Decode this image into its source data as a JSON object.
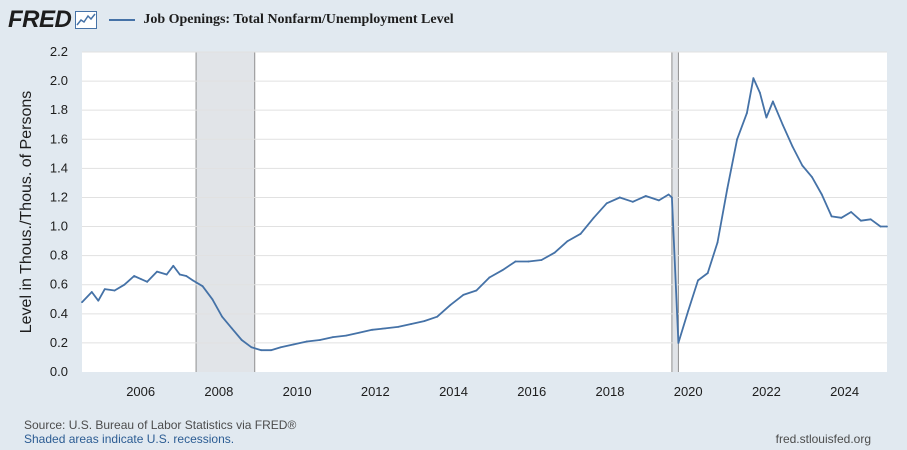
{
  "header": {
    "logo_text": "FRED",
    "logo_icon": "line-chart-icon",
    "series_title": "Job Openings: Total Nonfarm/Unemployment Level",
    "series_color": "#4572a7"
  },
  "footer": {
    "source": "Source: U.S. Bureau of Labor Statistics via FRED®",
    "recession_note": "Shaded areas indicate U.S. recessions.",
    "url": "fred.stlouisfed.org"
  },
  "chart_data": {
    "type": "line",
    "title": "Job Openings: Total Nonfarm/Unemployment Level",
    "ylabel": "Level in Thous./Thous. of Persons",
    "xlabel": "",
    "xlim": [
      "2005-01",
      "2025-08"
    ],
    "ylim": [
      0,
      2.2
    ],
    "y_ticks": [
      "0.0",
      "0.2",
      "0.4",
      "0.6",
      "0.8",
      "1.0",
      "1.2",
      "1.4",
      "1.6",
      "1.8",
      "2.0",
      "2.2"
    ],
    "x_ticks": [
      "2006",
      "2008",
      "2010",
      "2012",
      "2014",
      "2016",
      "2018",
      "2020",
      "2022",
      "2024"
    ],
    "grid": "horizontal",
    "recessions": [
      {
        "start": "2007-12",
        "end": "2009-06"
      },
      {
        "start": "2020-02",
        "end": "2020-04"
      }
    ],
    "series": [
      {
        "name": "Job Openings: Total Nonfarm/Unemployment Level",
        "color": "#4572a7",
        "points": [
          [
            "2005-01",
            0.48
          ],
          [
            "2005-04",
            0.55
          ],
          [
            "2005-06",
            0.49
          ],
          [
            "2005-08",
            0.57
          ],
          [
            "2005-11",
            0.56
          ],
          [
            "2006-02",
            0.6
          ],
          [
            "2006-05",
            0.66
          ],
          [
            "2006-07",
            0.64
          ],
          [
            "2006-09",
            0.62
          ],
          [
            "2006-12",
            0.69
          ],
          [
            "2007-03",
            0.67
          ],
          [
            "2007-05",
            0.73
          ],
          [
            "2007-07",
            0.67
          ],
          [
            "2007-09",
            0.66
          ],
          [
            "2007-11",
            0.63
          ],
          [
            "2008-02",
            0.59
          ],
          [
            "2008-05",
            0.5
          ],
          [
            "2008-08",
            0.38
          ],
          [
            "2008-11",
            0.3
          ],
          [
            "2009-02",
            0.22
          ],
          [
            "2009-05",
            0.17
          ],
          [
            "2009-08",
            0.15
          ],
          [
            "2009-11",
            0.15
          ],
          [
            "2010-02",
            0.17
          ],
          [
            "2010-06",
            0.19
          ],
          [
            "2010-10",
            0.21
          ],
          [
            "2011-02",
            0.22
          ],
          [
            "2011-06",
            0.24
          ],
          [
            "2011-10",
            0.25
          ],
          [
            "2012-02",
            0.27
          ],
          [
            "2012-06",
            0.29
          ],
          [
            "2012-10",
            0.3
          ],
          [
            "2013-02",
            0.31
          ],
          [
            "2013-06",
            0.33
          ],
          [
            "2013-10",
            0.35
          ],
          [
            "2014-02",
            0.38
          ],
          [
            "2014-06",
            0.46
          ],
          [
            "2014-10",
            0.53
          ],
          [
            "2015-02",
            0.56
          ],
          [
            "2015-06",
            0.65
          ],
          [
            "2015-10",
            0.7
          ],
          [
            "2016-02",
            0.76
          ],
          [
            "2016-06",
            0.76
          ],
          [
            "2016-10",
            0.77
          ],
          [
            "2017-02",
            0.82
          ],
          [
            "2017-06",
            0.9
          ],
          [
            "2017-10",
            0.95
          ],
          [
            "2018-02",
            1.06
          ],
          [
            "2018-06",
            1.16
          ],
          [
            "2018-10",
            1.2
          ],
          [
            "2019-02",
            1.17
          ],
          [
            "2019-06",
            1.21
          ],
          [
            "2019-10",
            1.18
          ],
          [
            "2020-01",
            1.22
          ],
          [
            "2020-02",
            1.2
          ],
          [
            "2020-04",
            0.2
          ],
          [
            "2020-07",
            0.42
          ],
          [
            "2020-10",
            0.63
          ],
          [
            "2021-01",
            0.68
          ],
          [
            "2021-04",
            0.89
          ],
          [
            "2021-07",
            1.26
          ],
          [
            "2021-10",
            1.6
          ],
          [
            "2022-01",
            1.78
          ],
          [
            "2022-03",
            2.02
          ],
          [
            "2022-05",
            1.92
          ],
          [
            "2022-07",
            1.75
          ],
          [
            "2022-09",
            1.86
          ],
          [
            "2022-12",
            1.7
          ],
          [
            "2023-03",
            1.55
          ],
          [
            "2023-06",
            1.42
          ],
          [
            "2023-09",
            1.34
          ],
          [
            "2023-12",
            1.22
          ],
          [
            "2024-03",
            1.07
          ],
          [
            "2024-06",
            1.06
          ],
          [
            "2024-09",
            1.1
          ],
          [
            "2024-12",
            1.04
          ],
          [
            "2025-03",
            1.05
          ],
          [
            "2025-06",
            1.0
          ],
          [
            "2025-08",
            1.0
          ]
        ]
      }
    ]
  }
}
